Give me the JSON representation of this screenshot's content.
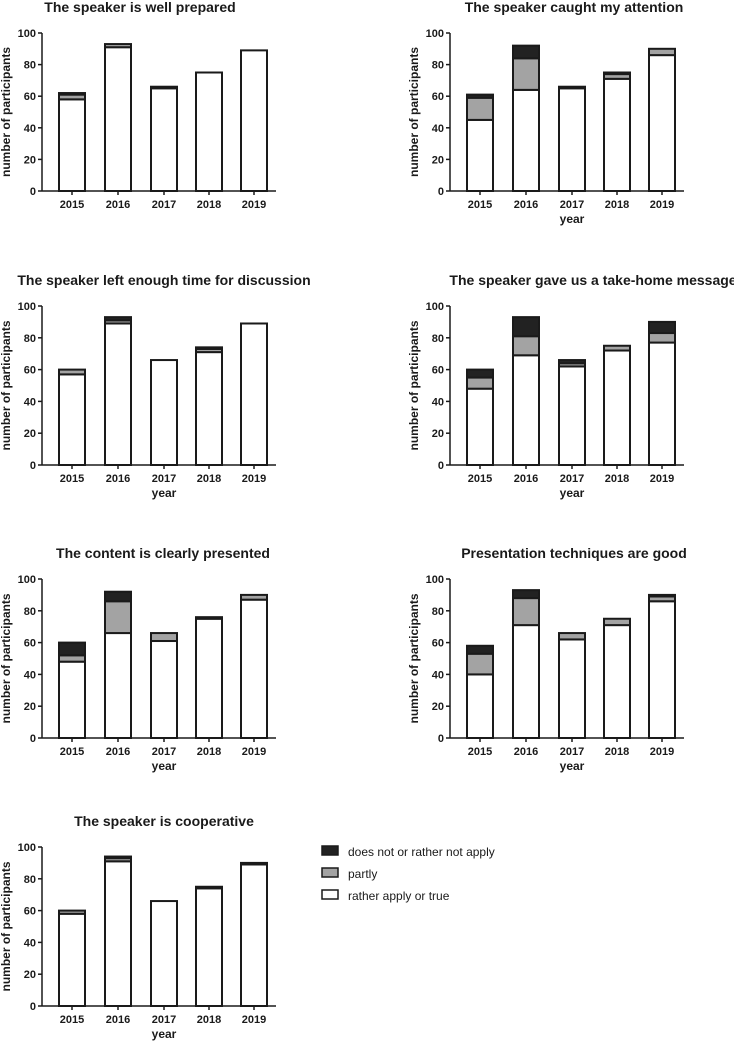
{
  "colors": {
    "rather_apply": "#ffffff",
    "partly": "#a3a3a3",
    "not_apply": "#222222",
    "axis": "#1a1a1a"
  },
  "legend": [
    {
      "key": "not_apply",
      "label": "does not or rather not apply"
    },
    {
      "key": "partly",
      "label": "partly"
    },
    {
      "key": "rather_apply",
      "label": "rather apply or true"
    }
  ],
  "chart_data": [
    {
      "type": "bar",
      "stacked": true,
      "title": "The speaker is well prepared",
      "xlabel": "",
      "ylabel": "number of participants",
      "categories": [
        "2015",
        "2016",
        "2017",
        "2018",
        "2019"
      ],
      "ylim": [
        0,
        100
      ],
      "yticks": [
        0,
        20,
        40,
        60,
        80,
        100
      ],
      "series": [
        {
          "name": "rather apply or true",
          "key": "rather_apply",
          "values": [
            58,
            91,
            65,
            75,
            89
          ]
        },
        {
          "name": "partly",
          "key": "partly",
          "values": [
            3,
            2,
            1,
            0,
            0
          ]
        },
        {
          "name": "does not or rather not apply",
          "key": "not_apply",
          "values": [
            1,
            0,
            0,
            0,
            0
          ]
        }
      ]
    },
    {
      "type": "bar",
      "stacked": true,
      "title": "The speaker caught my attention",
      "xlabel": "year",
      "ylabel": "number of participants",
      "categories": [
        "2015",
        "2016",
        "2017",
        "2018",
        "2019"
      ],
      "ylim": [
        0,
        100
      ],
      "yticks": [
        0,
        20,
        40,
        60,
        80,
        100
      ],
      "series": [
        {
          "name": "rather apply or true",
          "key": "rather_apply",
          "values": [
            45,
            64,
            65,
            71,
            86
          ]
        },
        {
          "name": "partly",
          "key": "partly",
          "values": [
            14,
            20,
            1,
            3,
            4
          ]
        },
        {
          "name": "does not or rather not apply",
          "key": "not_apply",
          "values": [
            2,
            8,
            0,
            1,
            0
          ]
        }
      ]
    },
    {
      "type": "bar",
      "stacked": true,
      "title": "The speaker left enough time for discussion",
      "xlabel": "year",
      "ylabel": "number of participants",
      "categories": [
        "2015",
        "2016",
        "2017",
        "2018",
        "2019"
      ],
      "ylim": [
        0,
        100
      ],
      "yticks": [
        0,
        20,
        40,
        60,
        80,
        100
      ],
      "series": [
        {
          "name": "rather apply or true",
          "key": "rather_apply",
          "values": [
            57,
            89,
            66,
            71,
            89
          ]
        },
        {
          "name": "partly",
          "key": "partly",
          "values": [
            3,
            2,
            0,
            2,
            0
          ]
        },
        {
          "name": "does not or rather not apply",
          "key": "not_apply",
          "values": [
            0,
            2,
            0,
            1,
            0
          ]
        }
      ]
    },
    {
      "type": "bar",
      "stacked": true,
      "title": "The speaker gave us a take-home message",
      "xlabel": "year",
      "ylabel": "number of participants",
      "categories": [
        "2015",
        "2016",
        "2017",
        "2018",
        "2019"
      ],
      "ylim": [
        0,
        100
      ],
      "yticks": [
        0,
        20,
        40,
        60,
        80,
        100
      ],
      "series": [
        {
          "name": "rather apply or true",
          "key": "rather_apply",
          "values": [
            48,
            69,
            62,
            72,
            77
          ]
        },
        {
          "name": "partly",
          "key": "partly",
          "values": [
            7,
            12,
            2,
            3,
            6
          ]
        },
        {
          "name": "does not or rather not apply",
          "key": "not_apply",
          "values": [
            5,
            12,
            2,
            0,
            7
          ]
        }
      ]
    },
    {
      "type": "bar",
      "stacked": true,
      "title": "The content is clearly presented",
      "xlabel": "year",
      "ylabel": "number of participants",
      "categories": [
        "2015",
        "2016",
        "2017",
        "2018",
        "2019"
      ],
      "ylim": [
        0,
        100
      ],
      "yticks": [
        0,
        20,
        40,
        60,
        80,
        100
      ],
      "series": [
        {
          "name": "rather apply or true",
          "key": "rather_apply",
          "values": [
            48,
            66,
            61,
            75,
            87
          ]
        },
        {
          "name": "partly",
          "key": "partly",
          "values": [
            4,
            20,
            5,
            1,
            3
          ]
        },
        {
          "name": "does not or rather not apply",
          "key": "not_apply",
          "values": [
            8,
            6,
            0,
            0,
            0
          ]
        }
      ]
    },
    {
      "type": "bar",
      "stacked": true,
      "title": "Presentation techniques are good",
      "xlabel": "year",
      "ylabel": "number of participants",
      "categories": [
        "2015",
        "2016",
        "2017",
        "2018",
        "2019"
      ],
      "ylim": [
        0,
        100
      ],
      "yticks": [
        0,
        20,
        40,
        60,
        80,
        100
      ],
      "series": [
        {
          "name": "rather apply or true",
          "key": "rather_apply",
          "values": [
            40,
            71,
            62,
            71,
            86
          ]
        },
        {
          "name": "partly",
          "key": "partly",
          "values": [
            13,
            17,
            4,
            4,
            3
          ]
        },
        {
          "name": "does not or rather not apply",
          "key": "not_apply",
          "values": [
            5,
            5,
            0,
            0,
            1
          ]
        }
      ]
    },
    {
      "type": "bar",
      "stacked": true,
      "title": "The speaker is cooperative",
      "xlabel": "year",
      "ylabel": "number of participants",
      "categories": [
        "2015",
        "2016",
        "2017",
        "2018",
        "2019"
      ],
      "ylim": [
        0,
        100
      ],
      "yticks": [
        0,
        20,
        40,
        60,
        80,
        100
      ],
      "series": [
        {
          "name": "rather apply or true",
          "key": "rather_apply",
          "values": [
            58,
            91,
            66,
            74,
            89
          ]
        },
        {
          "name": "partly",
          "key": "partly",
          "values": [
            2,
            2,
            0,
            1,
            0
          ]
        },
        {
          "name": "does not or rather not apply",
          "key": "not_apply",
          "values": [
            0,
            1,
            0,
            0,
            1
          ]
        }
      ]
    }
  ]
}
